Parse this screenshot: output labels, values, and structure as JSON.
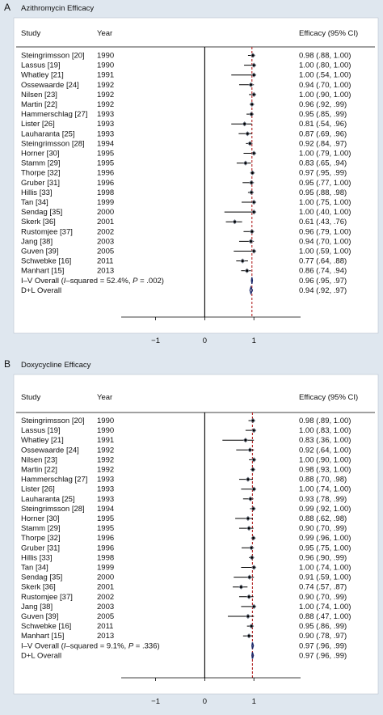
{
  "chart_data": [
    {
      "type": "forest",
      "panel_letter": "A",
      "title": "Azithromycin Efficacy",
      "col_study": "Study",
      "col_year": "Year",
      "col_effect": "Efficacy (95% CI)",
      "xlim": [
        -1.7,
        1.95
      ],
      "xticks": [
        {
          "value": -1,
          "label": "−1"
        },
        {
          "value": 0,
          "label": "0"
        },
        {
          "value": 1,
          "label": "1"
        }
      ],
      "null_line": 0,
      "overall_line": 0.96,
      "rows": [
        {
          "study": "Steingrimsson [20]",
          "year": "1990",
          "est": 0.98,
          "lo": 0.88,
          "hi": 1.0,
          "label": "0.98 (.88, 1.00)"
        },
        {
          "study": "Lassus [19]",
          "year": "1990",
          "est": 1.0,
          "lo": 0.8,
          "hi": 1.0,
          "label": "1.00 (.80, 1.00)"
        },
        {
          "study": "Whatley [21]",
          "year": "1991",
          "est": 1.0,
          "lo": 0.54,
          "hi": 1.0,
          "label": "1.00 (.54, 1.00)"
        },
        {
          "study": "Ossewaarde [24]",
          "year": "1992",
          "est": 0.94,
          "lo": 0.7,
          "hi": 1.0,
          "label": "0.94 (.70, 1.00)"
        },
        {
          "study": "Nilsen [23]",
          "year": "1992",
          "est": 1.0,
          "lo": 0.9,
          "hi": 1.0,
          "label": "1.00 (.90, 1.00)"
        },
        {
          "study": "Martin [22]",
          "year": "1992",
          "est": 0.96,
          "lo": 0.92,
          "hi": 0.99,
          "label": "0.96 (.92, .99)"
        },
        {
          "study": "Hammerschlag [27]",
          "year": "1993",
          "est": 0.95,
          "lo": 0.85,
          "hi": 0.99,
          "label": "0.95 (.85, .99)"
        },
        {
          "study": "Lister [26]",
          "year": "1993",
          "est": 0.81,
          "lo": 0.54,
          "hi": 0.96,
          "label": "0.81 (.54, .96)"
        },
        {
          "study": "Lauharanta [25]",
          "year": "1993",
          "est": 0.87,
          "lo": 0.69,
          "hi": 0.96,
          "label": "0.87 (.69, .96)"
        },
        {
          "study": "Steingrimsson [28]",
          "year": "1994",
          "est": 0.92,
          "lo": 0.84,
          "hi": 0.97,
          "label": "0.92 (.84, .97)"
        },
        {
          "study": "Horner [30]",
          "year": "1995",
          "est": 1.0,
          "lo": 0.79,
          "hi": 1.0,
          "label": "1.00 (.79, 1.00)"
        },
        {
          "study": "Stamm [29]",
          "year": "1995",
          "est": 0.83,
          "lo": 0.65,
          "hi": 0.94,
          "label": "0.83 (.65, .94)"
        },
        {
          "study": "Thorpe [32]",
          "year": "1996",
          "est": 0.97,
          "lo": 0.95,
          "hi": 0.99,
          "label": "0.97 (.95, .99)"
        },
        {
          "study": "Gruber [31]",
          "year": "1996",
          "est": 0.95,
          "lo": 0.77,
          "hi": 1.0,
          "label": "0.95 (.77, 1.00)"
        },
        {
          "study": "Hillis [33]",
          "year": "1998",
          "est": 0.95,
          "lo": 0.88,
          "hi": 0.98,
          "label": "0.95 (.88, .98)"
        },
        {
          "study": "Tan [34]",
          "year": "1999",
          "est": 1.0,
          "lo": 0.75,
          "hi": 1.0,
          "label": "1.00 (.75, 1.00)"
        },
        {
          "study": "Sendag [35]",
          "year": "2000",
          "est": 1.0,
          "lo": 0.4,
          "hi": 1.0,
          "label": "1.00 (.40, 1.00)"
        },
        {
          "study": "Skerk [36]",
          "year": "2001",
          "est": 0.61,
          "lo": 0.43,
          "hi": 0.76,
          "label": "0.61 (.43, .76)"
        },
        {
          "study": "Rustomjee [37]",
          "year": "2002",
          "est": 0.96,
          "lo": 0.79,
          "hi": 1.0,
          "label": "0.96 (.79, 1.00)"
        },
        {
          "study": "Jang [38]",
          "year": "2003",
          "est": 0.94,
          "lo": 0.7,
          "hi": 1.0,
          "label": "0.94 (.70, 1.00)"
        },
        {
          "study": "Guven [39]",
          "year": "2005",
          "est": 1.0,
          "lo": 0.59,
          "hi": 1.0,
          "label": "1.00 (.59, 1.00)"
        },
        {
          "study": "Schwebke [16]",
          "year": "2011",
          "est": 0.77,
          "lo": 0.64,
          "hi": 0.88,
          "label": "0.77 (.64, .88)"
        },
        {
          "study": "Manhart [15]",
          "year": "2013",
          "est": 0.86,
          "lo": 0.74,
          "hi": 0.94,
          "label": "0.86 (.74, .94)"
        }
      ],
      "overall": [
        {
          "prefix": "I–V Overall  (",
          "i_letter": "I",
          "suffix": "–squared = 52.4%, ",
          "p_letter": "P",
          "p_value": " = .002)",
          "est": 0.96,
          "lo": 0.95,
          "hi": 0.97,
          "label": "0.96 (.95, .97)"
        },
        {
          "text": "D+L Overall",
          "est": 0.94,
          "lo": 0.92,
          "hi": 0.97,
          "label": "0.94 (.92, .97)"
        }
      ]
    },
    {
      "type": "forest",
      "panel_letter": "B",
      "title": "Doxycycline Efficacy",
      "col_study": "Study",
      "col_year": "Year",
      "col_effect": "Efficacy (95% CI)",
      "xlim": [
        -1.7,
        1.95
      ],
      "xticks": [
        {
          "value": -1,
          "label": "−1"
        },
        {
          "value": 0,
          "label": "0"
        },
        {
          "value": 1,
          "label": "1"
        }
      ],
      "null_line": 0,
      "overall_line": 0.97,
      "rows": [
        {
          "study": "Steingrimsson [20]",
          "year": "1990",
          "est": 0.98,
          "lo": 0.89,
          "hi": 1.0,
          "label": "0.98 (.89, 1.00)"
        },
        {
          "study": "Lassus [19]",
          "year": "1990",
          "est": 1.0,
          "lo": 0.83,
          "hi": 1.0,
          "label": "1.00 (.83, 1.00)"
        },
        {
          "study": "Whatley [21]",
          "year": "1991",
          "est": 0.83,
          "lo": 0.36,
          "hi": 1.0,
          "label": "0.83 (.36, 1.00)"
        },
        {
          "study": "Ossewaarde [24]",
          "year": "1992",
          "est": 0.92,
          "lo": 0.64,
          "hi": 1.0,
          "label": "0.92 (.64, 1.00)"
        },
        {
          "study": "Nilsen [23]",
          "year": "1992",
          "est": 1.0,
          "lo": 0.9,
          "hi": 1.0,
          "label": "1.00 (.90, 1.00)"
        },
        {
          "study": "Martin [22]",
          "year": "1992",
          "est": 0.98,
          "lo": 0.93,
          "hi": 1.0,
          "label": "0.98 (.93, 1.00)"
        },
        {
          "study": "Hammerschlag [27]",
          "year": "1993",
          "est": 0.88,
          "lo": 0.7,
          "hi": 0.98,
          "label": "0.88 (.70, .98)"
        },
        {
          "study": "Lister [26]",
          "year": "1993",
          "est": 1.0,
          "lo": 0.74,
          "hi": 1.0,
          "label": "1.00 (.74, 1.00)"
        },
        {
          "study": "Lauharanta [25]",
          "year": "1993",
          "est": 0.93,
          "lo": 0.78,
          "hi": 0.99,
          "label": "0.93 (.78, .99)"
        },
        {
          "study": "Steingrimsson [28]",
          "year": "1994",
          "est": 0.99,
          "lo": 0.92,
          "hi": 1.0,
          "label": "0.99 (.92, 1.00)"
        },
        {
          "study": "Horner [30]",
          "year": "1995",
          "est": 0.88,
          "lo": 0.62,
          "hi": 0.98,
          "label": "0.88 (.62, .98)"
        },
        {
          "study": "Stamm [29]",
          "year": "1995",
          "est": 0.9,
          "lo": 0.7,
          "hi": 0.99,
          "label": "0.90 (.70, .99)"
        },
        {
          "study": "Thorpe [32]",
          "year": "1996",
          "est": 0.99,
          "lo": 0.96,
          "hi": 1.0,
          "label": "0.99 (.96, 1.00)"
        },
        {
          "study": "Gruber [31]",
          "year": "1996",
          "est": 0.95,
          "lo": 0.75,
          "hi": 1.0,
          "label": "0.95 (.75, 1.00)"
        },
        {
          "study": "Hillis [33]",
          "year": "1998",
          "est": 0.96,
          "lo": 0.9,
          "hi": 0.99,
          "label": "0.96 (.90, .99)"
        },
        {
          "study": "Tan [34]",
          "year": "1999",
          "est": 1.0,
          "lo": 0.74,
          "hi": 1.0,
          "label": "1.00 (.74, 1.00)"
        },
        {
          "study": "Sendag [35]",
          "year": "2000",
          "est": 0.91,
          "lo": 0.59,
          "hi": 1.0,
          "label": "0.91 (.59, 1.00)"
        },
        {
          "study": "Skerk [36]",
          "year": "2001",
          "est": 0.74,
          "lo": 0.57,
          "hi": 0.87,
          "label": "0.74 (.57, .87)"
        },
        {
          "study": "Rustomjee [37]",
          "year": "2002",
          "est": 0.9,
          "lo": 0.7,
          "hi": 0.99,
          "label": "0.90 (.70, .99)"
        },
        {
          "study": "Jang [38]",
          "year": "2003",
          "est": 1.0,
          "lo": 0.74,
          "hi": 1.0,
          "label": "1.00 (.74, 1.00)"
        },
        {
          "study": "Guven [39]",
          "year": "2005",
          "est": 0.88,
          "lo": 0.47,
          "hi": 1.0,
          "label": "0.88 (.47, 1.00)"
        },
        {
          "study": "Schwebke [16]",
          "year": "2011",
          "est": 0.95,
          "lo": 0.86,
          "hi": 0.99,
          "label": "0.95 (.86, .99)"
        },
        {
          "study": "Manhart [15]",
          "year": "2013",
          "est": 0.9,
          "lo": 0.78,
          "hi": 0.97,
          "label": "0.90 (.78, .97)"
        }
      ],
      "overall": [
        {
          "prefix": "I–V Overall  (",
          "i_letter": "I",
          "suffix": "–squared = 9.1%, ",
          "p_letter": "P",
          "p_value": " = .336)",
          "est": 0.97,
          "lo": 0.96,
          "hi": 0.99,
          "label": "0.97 (.96, .99)"
        },
        {
          "text": "D+L Overall",
          "est": 0.97,
          "lo": 0.96,
          "hi": 0.99,
          "label": "0.97 (.96, .99)"
        }
      ]
    }
  ],
  "colors": {
    "background": "#dfe7ef",
    "panel": "#ffffff",
    "text": "#111111",
    "axis": "#000000",
    "overall_line": "#b22222",
    "diamond": "#1c2a6b"
  }
}
